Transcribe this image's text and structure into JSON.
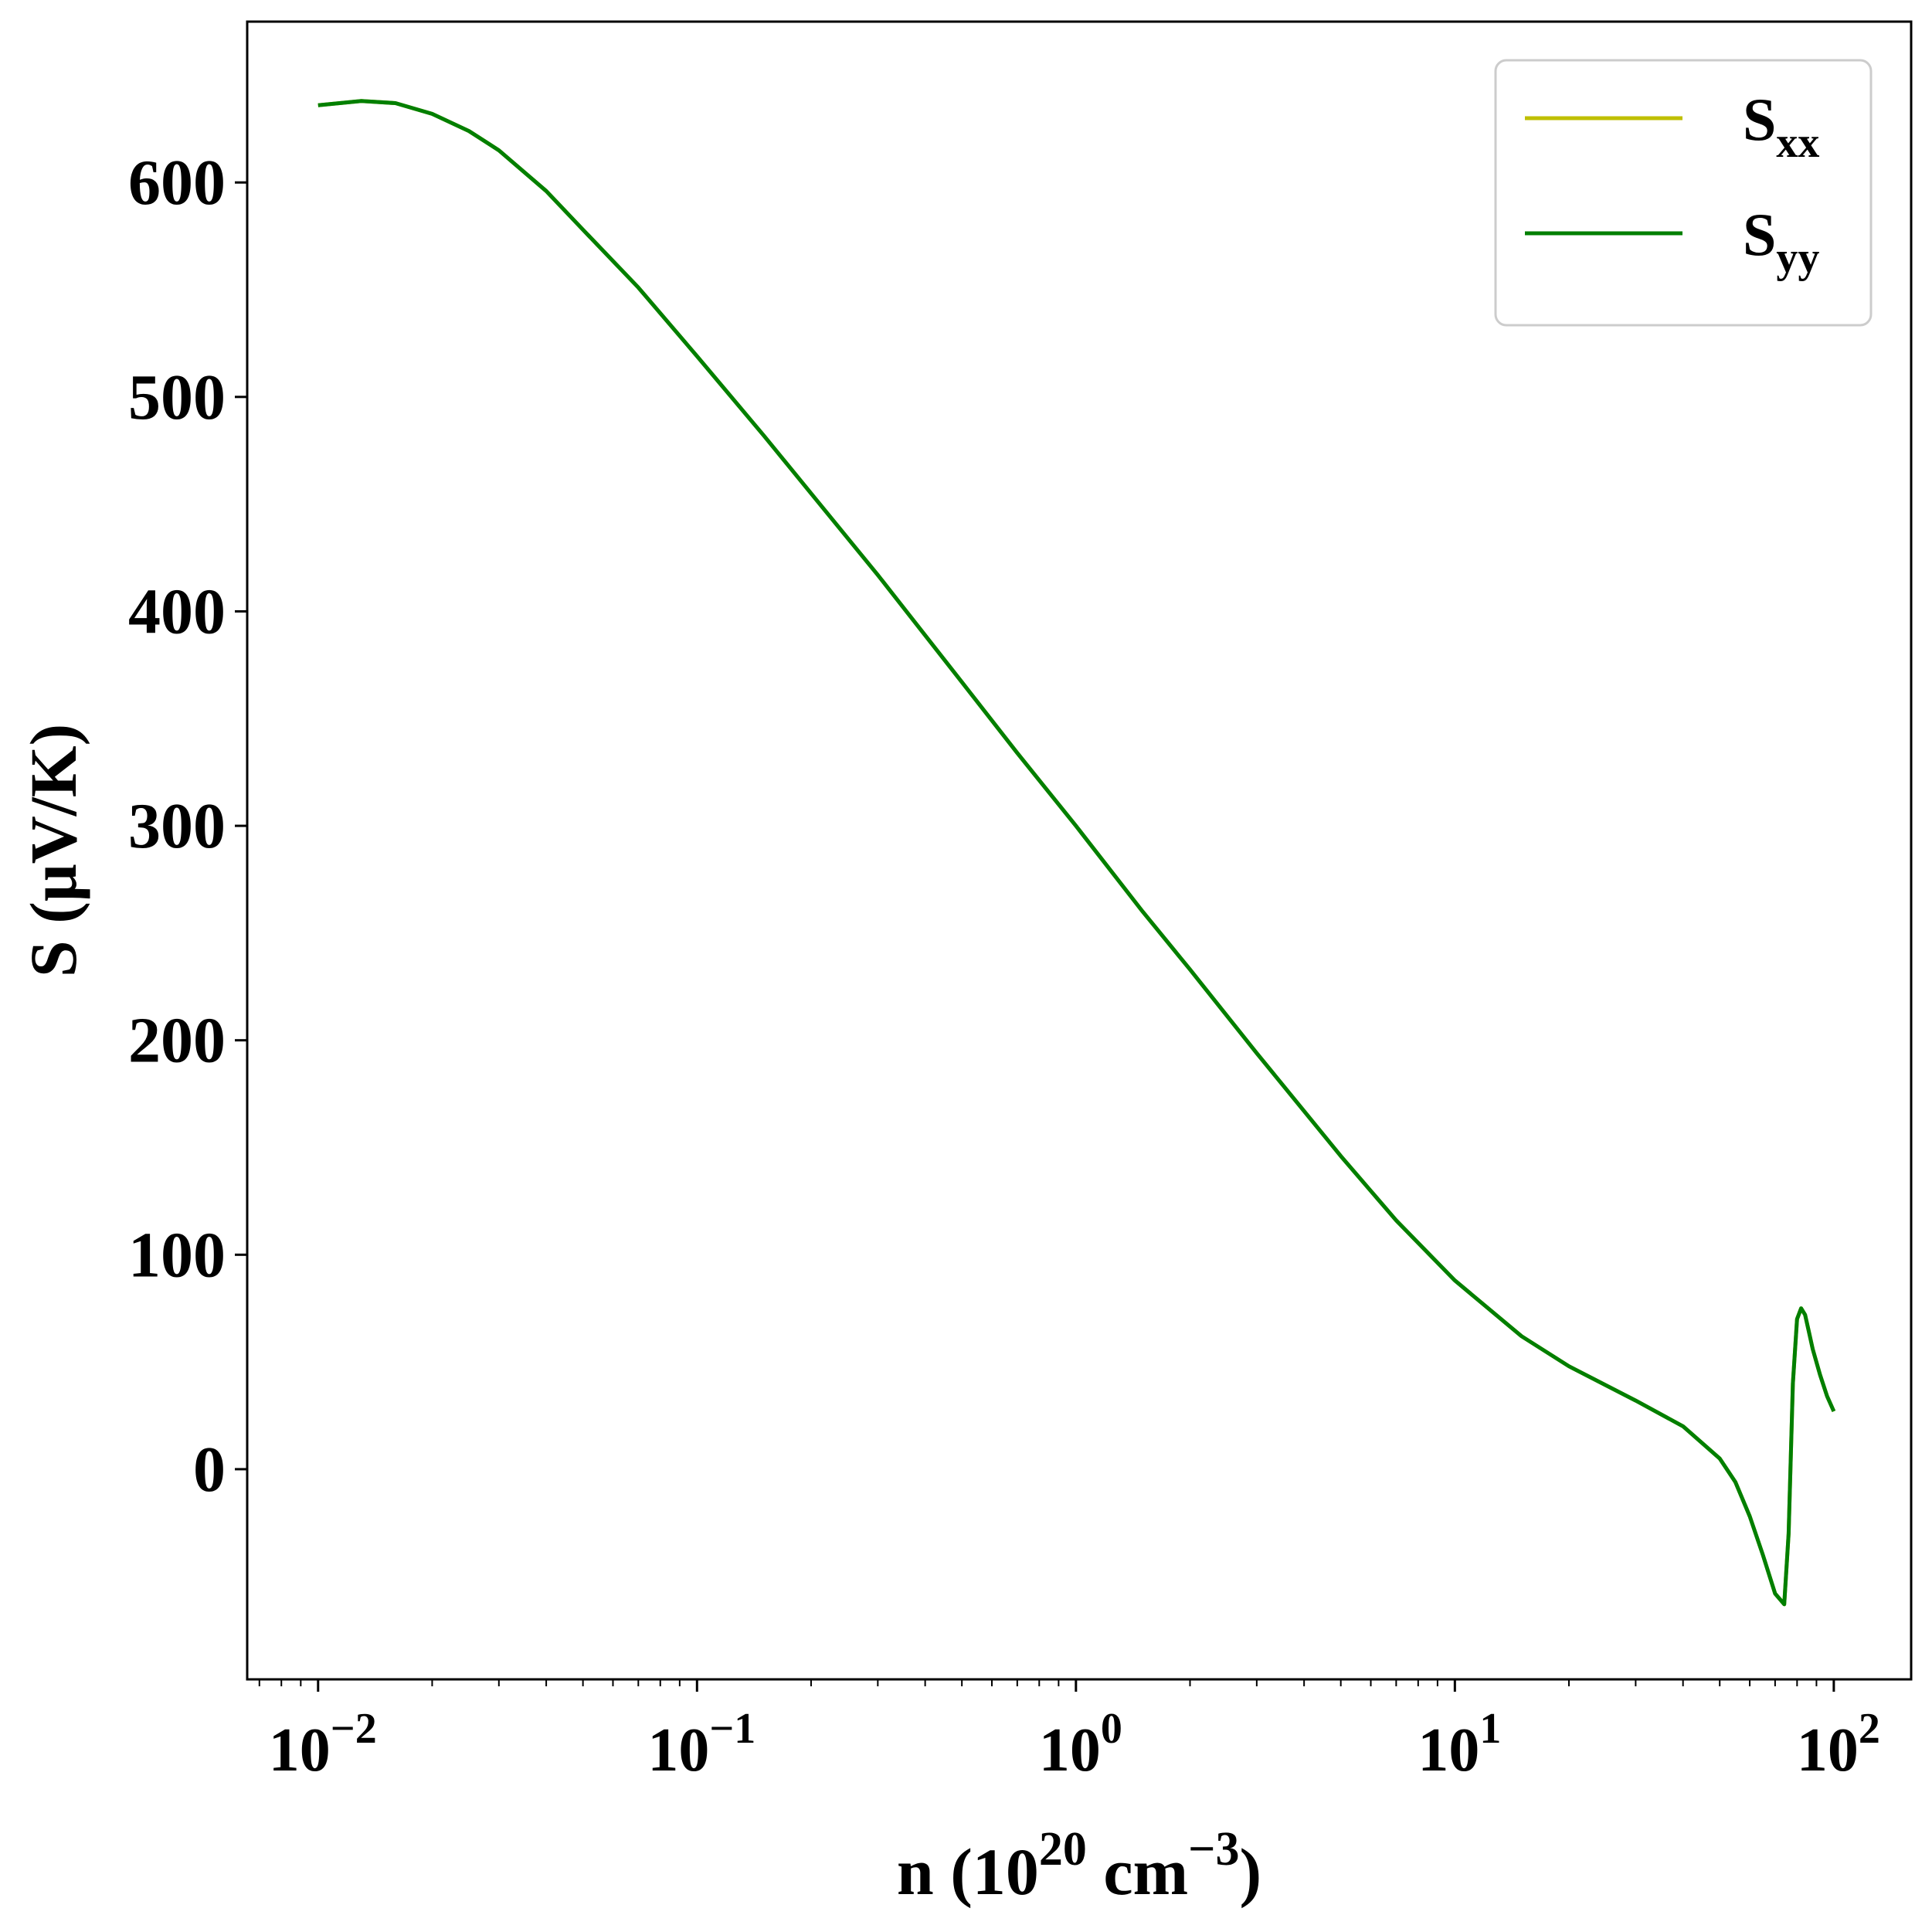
{
  "chart_data": {
    "type": "line",
    "xlabel": {
      "base": "n (10",
      "sup1": "20",
      "mid": " cm",
      "sup2": "−3",
      "end": ")"
    },
    "ylabel": "S (μV/K)",
    "xscale": "log",
    "xlim": [
      0.0065,
      160
    ],
    "ylim": [
      -98,
      675
    ],
    "x_ticks": [
      {
        "value": 0.01,
        "base": "10",
        "exp": "−2"
      },
      {
        "value": 0.1,
        "base": "10",
        "exp": "−1"
      },
      {
        "value": 1,
        "base": "10",
        "exp": "0"
      },
      {
        "value": 10,
        "base": "10",
        "exp": "1"
      },
      {
        "value": 100,
        "base": "10",
        "exp": "2"
      }
    ],
    "y_ticks": [
      0,
      100,
      200,
      300,
      400,
      500,
      600
    ],
    "grid": false,
    "legend_position": "top-right",
    "series": [
      {
        "name": "S",
        "subscript": "xx",
        "color": "#bfbf00",
        "x": [
          0.01,
          0.013,
          0.016,
          0.02,
          0.025,
          0.03,
          0.04,
          0.05,
          0.07,
          0.1,
          0.15,
          0.2,
          0.3,
          0.5,
          0.7,
          1,
          1.5,
          2,
          3,
          5,
          7,
          10,
          15,
          20,
          30,
          40,
          50,
          55,
          60,
          65,
          70,
          74,
          76,
          78,
          80,
          82,
          84,
          86,
          88,
          92,
          96,
          100
        ],
        "y": [
          636,
          638,
          637,
          632,
          624,
          615,
          596,
          578,
          551,
          519,
          482,
          455,
          417,
          367,
          334,
          300,
          260,
          233,
          194,
          146,
          116,
          88,
          62,
          48,
          32,
          20,
          5,
          -6,
          -22,
          -40,
          -58,
          -63,
          -30,
          40,
          70,
          75,
          72,
          64,
          56,
          44,
          34,
          27
        ]
      },
      {
        "name": "S",
        "subscript": "yy",
        "color": "#007f00",
        "x": [
          0.01,
          0.013,
          0.016,
          0.02,
          0.025,
          0.03,
          0.04,
          0.05,
          0.07,
          0.1,
          0.15,
          0.2,
          0.3,
          0.5,
          0.7,
          1,
          1.5,
          2,
          3,
          5,
          7,
          10,
          15,
          20,
          30,
          40,
          50,
          55,
          60,
          65,
          70,
          74,
          76,
          78,
          80,
          82,
          84,
          86,
          88,
          92,
          96,
          100
        ],
        "y": [
          636,
          638,
          637,
          632,
          624,
          615,
          596,
          578,
          551,
          519,
          482,
          455,
          417,
          367,
          334,
          300,
          260,
          233,
          194,
          146,
          116,
          88,
          62,
          48,
          32,
          20,
          5,
          -6,
          -22,
          -40,
          -58,
          -63,
          -30,
          40,
          70,
          75,
          72,
          64,
          56,
          44,
          34,
          27
        ]
      }
    ]
  }
}
